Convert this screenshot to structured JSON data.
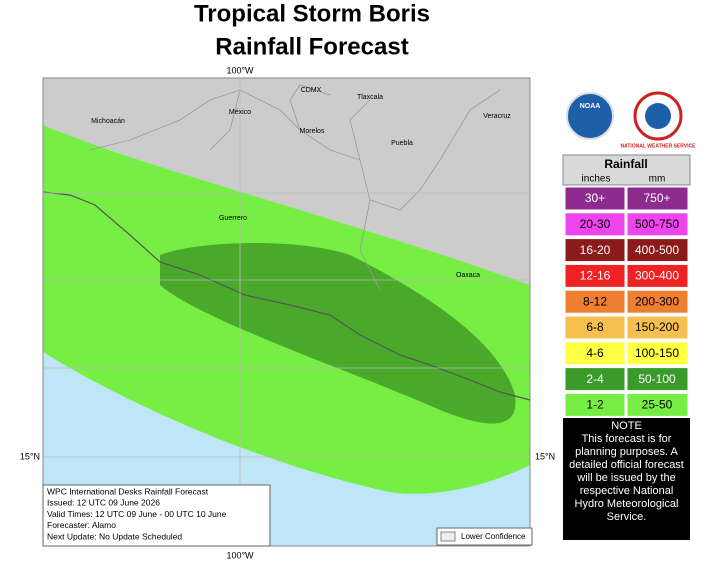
{
  "title": [
    "Tropical Storm Boris",
    "Rainfall Forecast"
  ],
  "map": {
    "grid_labels": {
      "top": "100°W",
      "bottom": "100°W",
      "left": "15°N",
      "right": "15°N"
    },
    "places": [
      "Michoacán",
      "México",
      "CDMX",
      "Tlaxcala",
      "Veracruz",
      "Morelos",
      "Puebla",
      "Guerrero",
      "Oaxaca"
    ]
  },
  "info_box": [
    "WPC International Desks Rainfall Forecast",
    "Issued: 12 UTC 09 June 2026",
    "Valid Times: 12 UTC 09 June - 00 UTC 10 June",
    "Forecaster: Alamo",
    "Next Update: No Update Scheduled"
  ],
  "lower_confidence": "Lower Confidence",
  "logos": {
    "noaa": "NOAA",
    "nws": "NATIONAL WEATHER SERVICE"
  },
  "legend": {
    "title": "Rainfall",
    "units": [
      "inches",
      "mm"
    ],
    "rows": [
      {
        "inches": "30+",
        "mm": "750+",
        "color": "#8e2b8e"
      },
      {
        "inches": "20-30",
        "mm": "500-750",
        "color": "#ee44ee"
      },
      {
        "inches": "16-20",
        "mm": "400-500",
        "color": "#8b1a1a"
      },
      {
        "inches": "12-16",
        "mm": "300-400",
        "color": "#ee2222"
      },
      {
        "inches": "8-12",
        "mm": "200-300",
        "color": "#ee7f30"
      },
      {
        "inches": "6-8",
        "mm": "150-200",
        "color": "#f5c050"
      },
      {
        "inches": "4-6",
        "mm": "100-150",
        "color": "#ffff44"
      },
      {
        "inches": "2-4",
        "mm": "50-100",
        "color": "#3a9a2a"
      },
      {
        "inches": "1-2",
        "mm": "25-50",
        "color": "#77ee44"
      }
    ]
  },
  "note": {
    "title": "NOTE",
    "text": "This forecast is for planning purposes. A detailed official forecast will be issued by the respective National Hydro Meteorological Service."
  }
}
